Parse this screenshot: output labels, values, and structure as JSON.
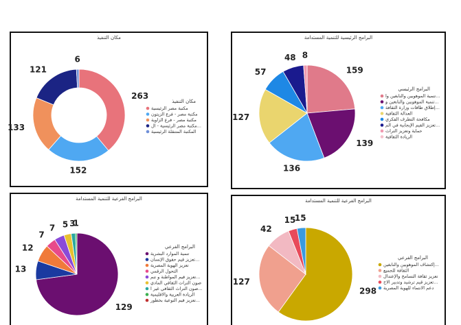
{
  "chart_data": [
    {
      "type": "donut",
      "title": "مكان التنفيذ",
      "values": [
        263,
        152,
        133,
        121,
        6
      ],
      "colors": [
        "#e8737b",
        "#4fa8f2",
        "#f0915c",
        "#1b2484",
        "#6f8fd8"
      ],
      "legend": {
        "title": "مكان التنفيذ",
        "items": [
          {
            "name": "مكتبة مصر الرئيسية",
            "color": "#e8737b"
          },
          {
            "name": "مكتبة مصر - فرع الزيتون",
            "color": "#4fa8f2"
          },
          {
            "name": "مكتبة مصر - فرع الزاوية",
            "color": "#f0915c"
          },
          {
            "name": "مكتبة مصر الرئيسية - ال...",
            "color": "#1b2484"
          },
          {
            "name": "المكتبة المتنقلة الرئيسية",
            "color": "#6f8fd8"
          }
        ]
      }
    },
    {
      "type": "pie",
      "title": "البرامج الرئيسية للتنمية المستدامة",
      "values": [
        159,
        139,
        136,
        127,
        57,
        48,
        8
      ],
      "colors": [
        "#e07a8a",
        "#6b0f70",
        "#4fa8f2",
        "#ead56e",
        "#1e88e5",
        "#1a1a8e",
        "#f09ab0"
      ],
      "legend": {
        "title": "البرامج الرئيسي",
        "items": [
          {
            "name": "تنمية الموهوبين والنابغين وا...",
            "color": "#e07a8a"
          },
          {
            "name": "تنمية الموهوبين والنابغين و...",
            "color": "#6b0f70"
          },
          {
            "name": "إطلاق طاقات وزارة الثقافة...",
            "color": "#4fa8f2"
          },
          {
            "name": "العدالة الثقافية",
            "color": "#ead56e"
          },
          {
            "name": "مكافحة التطرف الفكري",
            "color": "#1e88e5"
          },
          {
            "name": "تعزيز القيم الإيجابية في الم...",
            "color": "#1a1a8e"
          },
          {
            "name": "حماية وتعزيز التراث",
            "color": "#f09ab0"
          },
          {
            "name": "الريادة الثقافية",
            "color": "#f5c0cc"
          }
        ]
      }
    },
    {
      "type": "pie",
      "title": "البرامج الفرعية للتنمية المستدامة",
      "values": [
        129,
        13,
        12,
        7,
        7,
        5,
        3,
        1
      ],
      "colors": [
        "#6b0f70",
        "#1b3aa0",
        "#f07a3a",
        "#e84a8a",
        "#8a4ad8",
        "#e8c030",
        "#2aa8a0",
        "#3cb050"
      ],
      "legend": {
        "title": "البرامج الفرعي",
        "items": [
          {
            "name": "تنمية الموارد البشرية",
            "color": "#6b0f70"
          },
          {
            "name": "تعزيز قيم حقوق الإنسان...",
            "color": "#1b3aa0"
          },
          {
            "name": "تعزيز الهوية المصرية",
            "color": "#f07a3a"
          },
          {
            "name": "التحول الرقمي",
            "color": "#e84a8a"
          },
          {
            "name": "تعزيز قيم المواطنة و تنم...",
            "color": "#8a4ad8"
          },
          {
            "name": "صون التراث الثقافي المادي",
            "color": "#e8c030"
          },
          {
            "name": "صون التراث الثقافي غير ا...",
            "color": "#2aa8a0"
          },
          {
            "name": "الريادة العربية والاقليمية",
            "color": "#3cb050"
          },
          {
            "name": "تعزيز قيم التوعية بخطور...",
            "color": "#c03030"
          }
        ]
      }
    },
    {
      "type": "pie",
      "title": "البرامج الفرعية للتنمية المستدامة",
      "values": [
        298,
        127,
        42,
        15,
        15
      ],
      "colors": [
        "#c9a800",
        "#f0a08e",
        "#f2b9c2",
        "#e84a5a",
        "#3a9ae0"
      ],
      "legend": {
        "title": "البرامج الفرعي",
        "items": [
          {
            "name": "إكتشاف الموهوبين والنابغين...",
            "color": "#c9a800"
          },
          {
            "name": "الثقافة للجميع",
            "color": "#f0a08e"
          },
          {
            "name": "تعزيز ثقافة التسامح والإعتدال",
            "color": "#f2b9c2"
          },
          {
            "name": "تعزيز قيم ترشيد وتدبير الاح...",
            "color": "#e84a5a"
          },
          {
            "name": "دعم الانتماء للهوية المصرية",
            "color": "#3a9ae0"
          }
        ]
      }
    }
  ]
}
